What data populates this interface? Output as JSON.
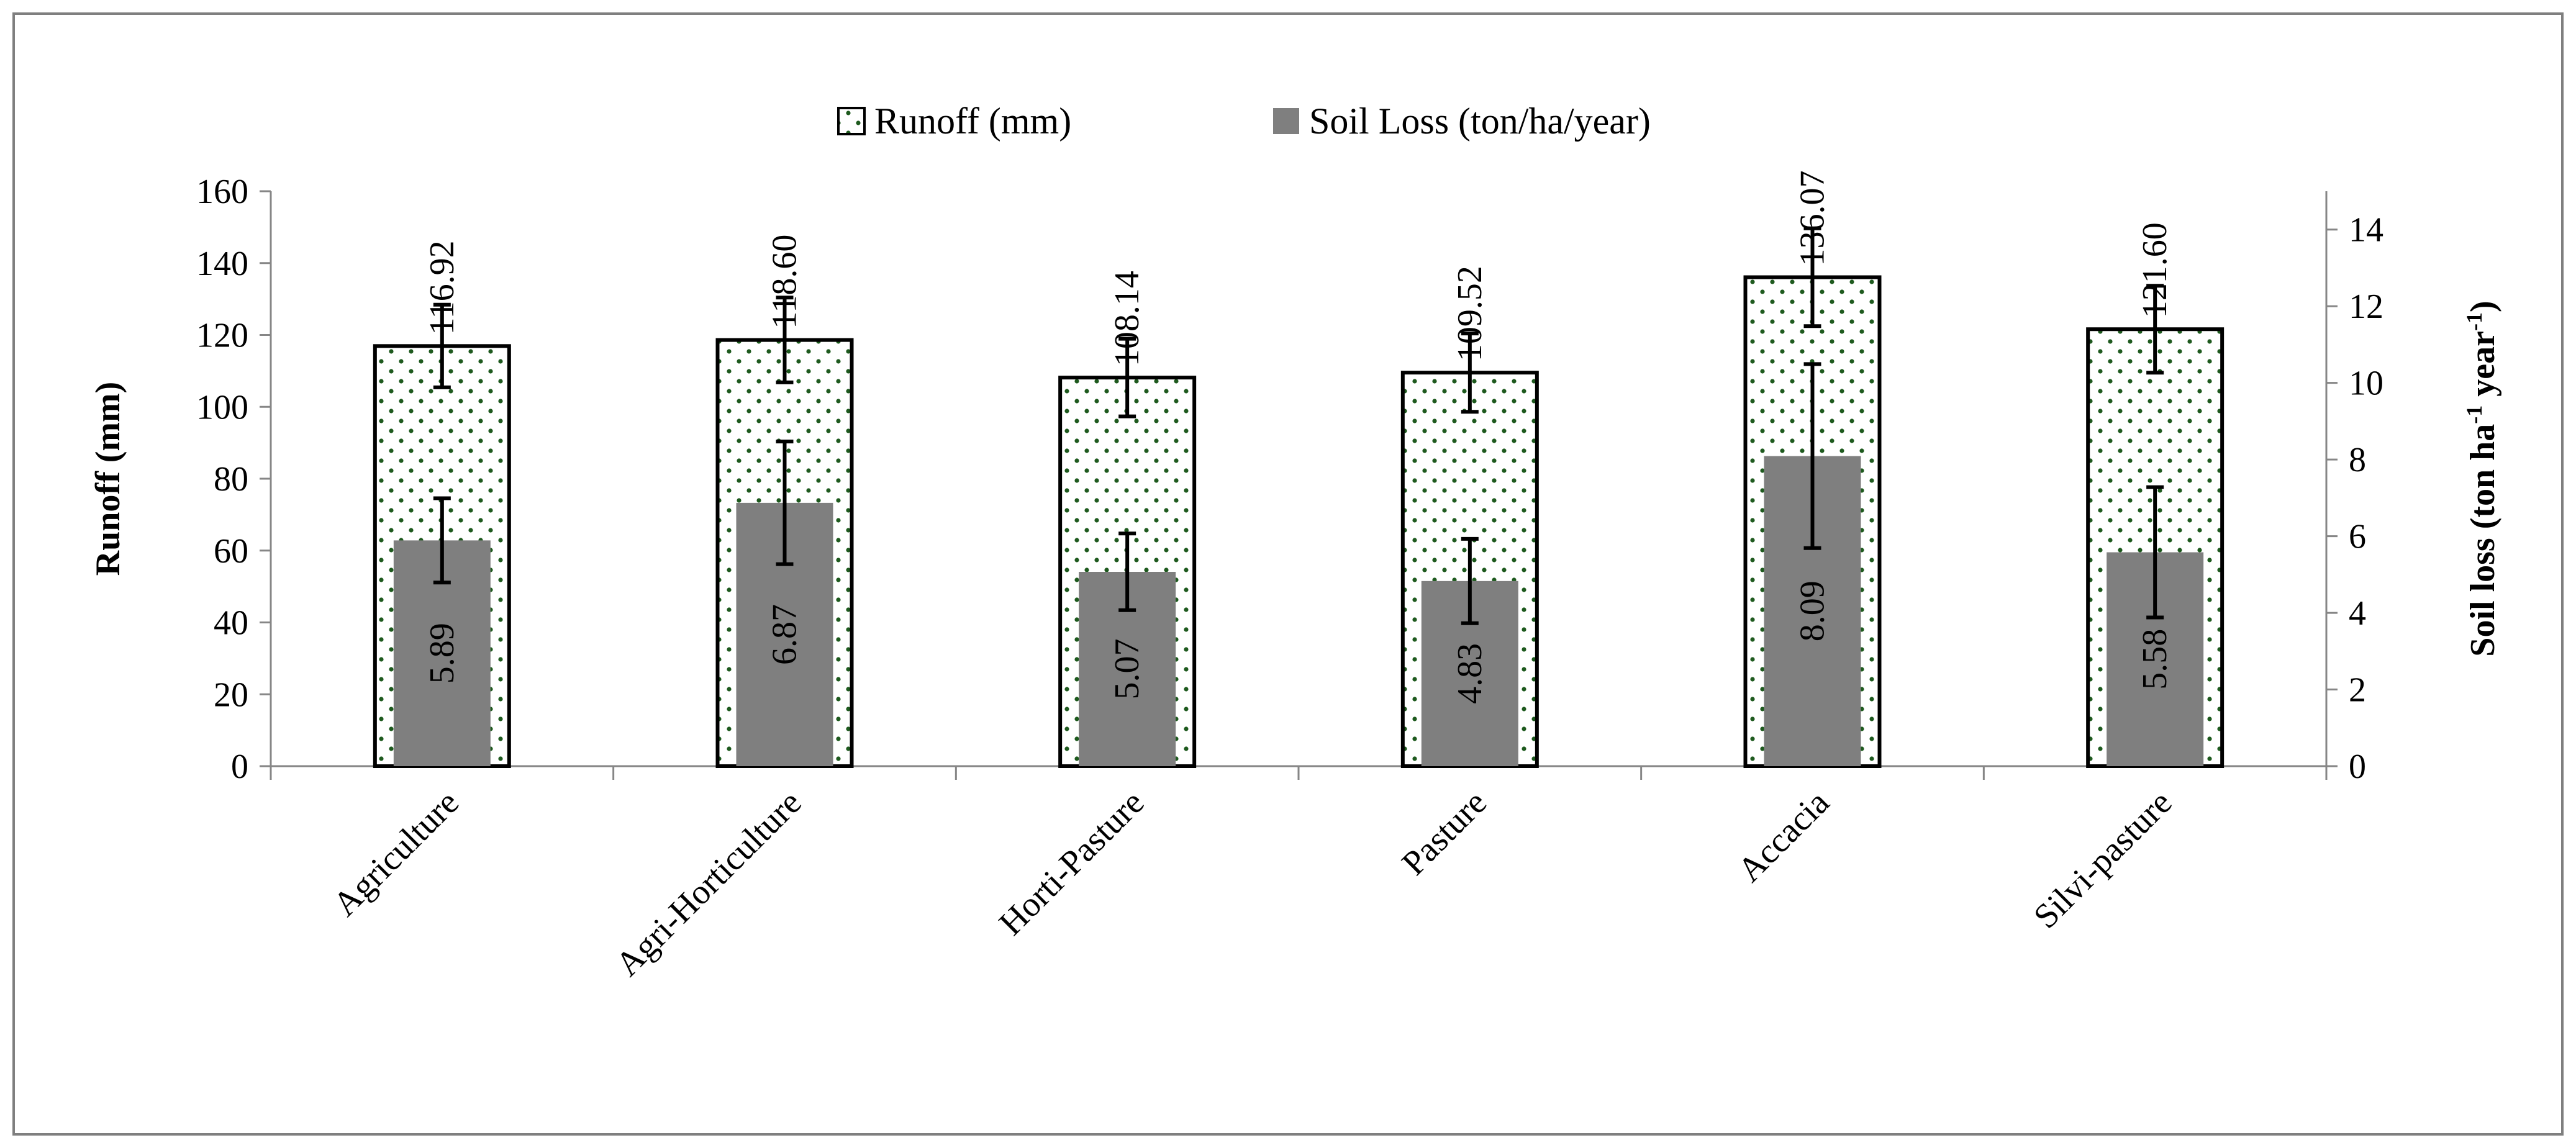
{
  "chart_data": {
    "type": "bar",
    "categories": [
      "Agriculture",
      "Agri-Horticulture",
      "Horti-Pasture",
      "Pasture",
      "Accacia",
      "Silvi-pasture"
    ],
    "series": [
      {
        "name": "Runoff (mm)",
        "axis": "left",
        "values": [
          116.92,
          118.6,
          108.14,
          109.52,
          136.07,
          121.6
        ],
        "value_labels": [
          "116.92",
          "118.60",
          "108.14",
          "109.52",
          "136.07",
          "121.60"
        ],
        "error": [
          11.5,
          11.8,
          10.8,
          10.9,
          13.6,
          12.1
        ]
      },
      {
        "name": "Soil Loss (ton/ha/year)",
        "axis": "right",
        "values": [
          5.89,
          6.87,
          5.07,
          4.83,
          8.09,
          5.58
        ],
        "value_labels": [
          "5.89",
          "6.87",
          "5.07",
          "4.83",
          "8.09",
          "5.58"
        ],
        "error": [
          1.1,
          1.6,
          1.0,
          1.1,
          2.4,
          1.7
        ]
      }
    ],
    "y_left": {
      "label": "Runoff (mm)",
      "lim": [
        0,
        160
      ],
      "ticks": [
        "0",
        "20",
        "40",
        "60",
        "80",
        "100",
        "120",
        "140",
        "160"
      ]
    },
    "y_right": {
      "label_main": "Soil loss (ton ha",
      "label_sup1": "-1",
      "label_mid": " year",
      "label_sup2": "-1",
      "label_end": ")",
      "lim": [
        0,
        15
      ],
      "ticks": [
        "0",
        "2",
        "4",
        "6",
        "8",
        "10",
        "12",
        "14"
      ]
    },
    "colors": {
      "soil": "#7f7f7f",
      "dots": "#1e5a1e",
      "frame": "#7f7f7f"
    },
    "legend": "top-center"
  }
}
